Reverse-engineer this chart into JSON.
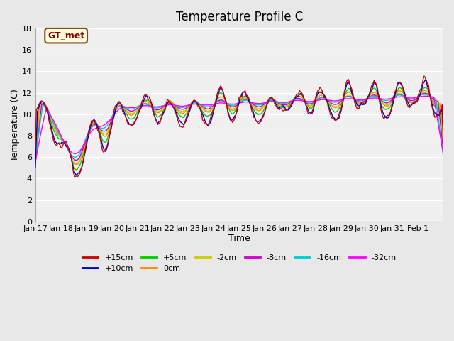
{
  "title": "Temperature Profile C",
  "xlabel": "Time",
  "ylabel": "Temperature (C)",
  "ylim": [
    0,
    18
  ],
  "yticks": [
    0,
    2,
    4,
    6,
    8,
    10,
    12,
    14,
    16,
    18
  ],
  "x_labels": [
    "Jan 17",
    "Jan 18",
    "Jan 19",
    "Jan 20",
    "Jan 21",
    "Jan 22",
    "Jan 23",
    "Jan 24",
    "Jan 25",
    "Jan 26",
    "Jan 27",
    "Jan 28",
    "Jan 29",
    "Jan 30",
    "Jan 31",
    "Feb 1"
  ],
  "series_colors": {
    "+15cm": "#cc0000",
    "+10cm": "#0000cc",
    "+5cm": "#00cc00",
    "0cm": "#ff8800",
    "-2cm": "#cccc00",
    "-8cm": "#cc00cc",
    "-16cm": "#00cccc",
    "-32cm": "#ff00ff"
  },
  "series_order": [
    "+15cm",
    "+10cm",
    "+5cm",
    "0cm",
    "-2cm",
    "-8cm",
    "-16cm",
    "-32cm"
  ],
  "legend_label": "GT_met",
  "bg_color": "#e8e8e8",
  "plot_bg": "#f0f0f0",
  "grid_color": "#ffffff"
}
